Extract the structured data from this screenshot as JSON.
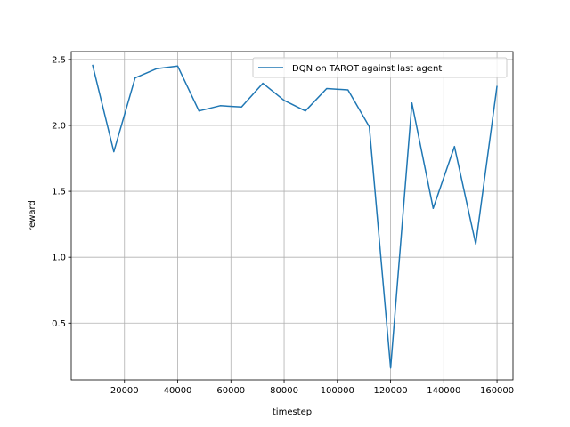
{
  "chart_data": {
    "type": "line",
    "xlabel": "timestep",
    "ylabel": "reward",
    "xlim": [
      0,
      166000
    ],
    "ylim": [
      0.07,
      2.56
    ],
    "x_ticks": [
      20000,
      40000,
      60000,
      80000,
      100000,
      120000,
      140000,
      160000
    ],
    "y_ticks": [
      0.5,
      1.0,
      1.5,
      2.0,
      2.5
    ],
    "x_tick_labels": [
      "20000",
      "40000",
      "60000",
      "80000",
      "100000",
      "120000",
      "140000",
      "160000"
    ],
    "y_tick_labels": [
      "0.5",
      "1.0",
      "1.5",
      "2.0",
      "2.5"
    ],
    "grid": true,
    "legend_position": "top-right",
    "colors": {
      "series": "#1f77b4",
      "grid": "#b0b0b0",
      "axes": "#000000"
    },
    "series": [
      {
        "name": "DQN on TAROT against last agent",
        "x": [
          8000,
          16000,
          24000,
          32000,
          40000,
          48000,
          56000,
          64000,
          72000,
          80000,
          88000,
          96000,
          104000,
          112000,
          120000,
          128000,
          136000,
          144000,
          152000,
          160000
        ],
        "y": [
          2.46,
          1.8,
          2.36,
          2.43,
          2.45,
          2.11,
          2.15,
          2.14,
          2.32,
          2.19,
          2.11,
          2.28,
          2.27,
          1.99,
          0.16,
          2.17,
          1.37,
          1.84,
          1.1,
          2.3
        ]
      }
    ]
  }
}
